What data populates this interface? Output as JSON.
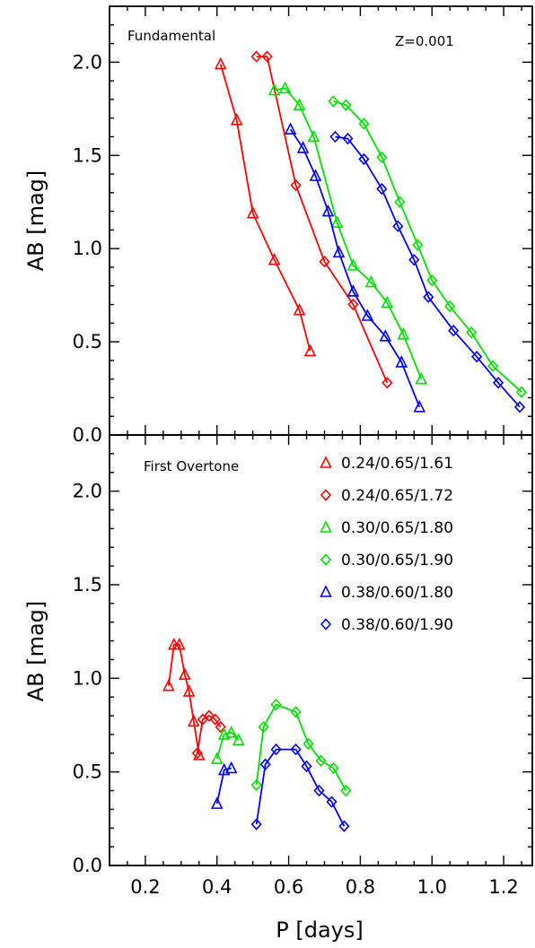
{
  "chart_data": [
    {
      "type": "line",
      "panel_label": "Fundamental",
      "annotation": "Z=0.001",
      "xlabel": "P [days]",
      "ylabel": "AB [mag]",
      "xlim": [
        0.1,
        1.28
      ],
      "ylim": [
        0.0,
        2.3
      ],
      "x_ticks": [
        "0.2",
        "0.4",
        "0.6",
        "0.8",
        "1.0",
        "1.2"
      ],
      "y_ticks": [
        "0.0",
        "0.5",
        "1.0",
        "1.5",
        "2.0"
      ],
      "series": [
        {
          "color": "#ff0000",
          "marker": "triangle",
          "x": [
            0.41,
            0.455,
            0.5,
            0.56,
            0.63,
            0.66
          ],
          "y": [
            1.99,
            1.69,
            1.19,
            0.94,
            0.67,
            0.45
          ]
        },
        {
          "color": "#ff0000",
          "marker": "diamond",
          "x": [
            0.51,
            0.54,
            0.62,
            0.7,
            0.78,
            0.875
          ],
          "y": [
            2.03,
            2.03,
            1.34,
            0.93,
            0.7,
            0.28
          ]
        },
        {
          "color": "#00e000",
          "marker": "triangle",
          "x": [
            0.56,
            0.59,
            0.63,
            0.67,
            0.735,
            0.78,
            0.83,
            0.875,
            0.92,
            0.97
          ],
          "y": [
            1.85,
            1.86,
            1.77,
            1.6,
            1.14,
            0.91,
            0.82,
            0.71,
            0.54,
            0.3
          ]
        },
        {
          "color": "#00e000",
          "marker": "diamond",
          "x": [
            0.725,
            0.76,
            0.81,
            0.86,
            0.91,
            0.96,
            1.0,
            1.05,
            1.11,
            1.17,
            1.25
          ],
          "y": [
            1.79,
            1.77,
            1.67,
            1.49,
            1.25,
            1.02,
            0.83,
            0.69,
            0.55,
            0.37,
            0.23
          ]
        },
        {
          "color": "#0000ff",
          "marker": "triangle",
          "x": [
            0.605,
            0.64,
            0.675,
            0.71,
            0.74,
            0.78,
            0.82,
            0.87,
            0.915,
            0.965
          ],
          "y": [
            1.64,
            1.54,
            1.39,
            1.2,
            0.98,
            0.77,
            0.64,
            0.53,
            0.39,
            0.15
          ]
        },
        {
          "color": "#0000ff",
          "marker": "diamond",
          "x": [
            0.73,
            0.765,
            0.81,
            0.86,
            0.905,
            0.95,
            0.99,
            1.06,
            1.125,
            1.185,
            1.245
          ],
          "y": [
            1.6,
            1.59,
            1.48,
            1.32,
            1.12,
            0.94,
            0.74,
            0.56,
            0.42,
            0.28,
            0.15
          ]
        }
      ]
    },
    {
      "type": "line",
      "panel_label": "First Overtone",
      "xlabel": "P [days]",
      "ylabel": "AB [mag]",
      "xlim": [
        0.1,
        1.28
      ],
      "ylim": [
        0.0,
        2.3
      ],
      "x_ticks": [
        "0.2",
        "0.4",
        "0.6",
        "0.8",
        "1.0",
        "1.2"
      ],
      "y_ticks": [
        "0.0",
        "0.5",
        "1.0",
        "1.5",
        "2.0"
      ],
      "legend": [
        {
          "label": "0.24/0.65/1.61",
          "color": "#ff0000",
          "marker": "triangle"
        },
        {
          "label": "0.24/0.65/1.72",
          "color": "#ff0000",
          "marker": "diamond"
        },
        {
          "label": "0.30/0.65/1.80",
          "color": "#00e000",
          "marker": "triangle"
        },
        {
          "label": "0.30/0.65/1.90",
          "color": "#00e000",
          "marker": "diamond"
        },
        {
          "label": "0.38/0.60/1.80",
          "color": "#0000ff",
          "marker": "triangle"
        },
        {
          "label": "0.38/0.60/1.90",
          "color": "#0000ff",
          "marker": "diamond"
        }
      ],
      "legend_position": "top-right",
      "series": [
        {
          "color": "#ff0000",
          "marker": "triangle",
          "x": [
            0.265,
            0.28,
            0.295,
            0.31,
            0.322,
            0.335,
            0.35
          ],
          "y": [
            0.96,
            1.18,
            1.18,
            1.02,
            0.93,
            0.77,
            0.59
          ]
        },
        {
          "color": "#ff0000",
          "marker": "diamond",
          "x": [
            0.345,
            0.36,
            0.378,
            0.395,
            0.41
          ],
          "y": [
            0.6,
            0.78,
            0.8,
            0.78,
            0.74
          ]
        },
        {
          "color": "#00e000",
          "marker": "triangle",
          "x": [
            0.4,
            0.42,
            0.44,
            0.46
          ],
          "y": [
            0.57,
            0.7,
            0.71,
            0.67
          ]
        },
        {
          "color": "#00e000",
          "marker": "diamond",
          "x": [
            0.51,
            0.53,
            0.565,
            0.62,
            0.655,
            0.69,
            0.725,
            0.76
          ],
          "y": [
            0.43,
            0.74,
            0.86,
            0.82,
            0.65,
            0.56,
            0.52,
            0.4
          ]
        },
        {
          "color": "#0000ff",
          "marker": "triangle",
          "x": [
            0.4,
            0.42,
            0.44
          ],
          "y": [
            0.33,
            0.51,
            0.52
          ]
        },
        {
          "color": "#0000ff",
          "marker": "diamond",
          "x": [
            0.51,
            0.535,
            0.565,
            0.62,
            0.65,
            0.685,
            0.72,
            0.755
          ],
          "y": [
            0.22,
            0.54,
            0.62,
            0.62,
            0.53,
            0.4,
            0.34,
            0.21
          ]
        }
      ]
    }
  ]
}
